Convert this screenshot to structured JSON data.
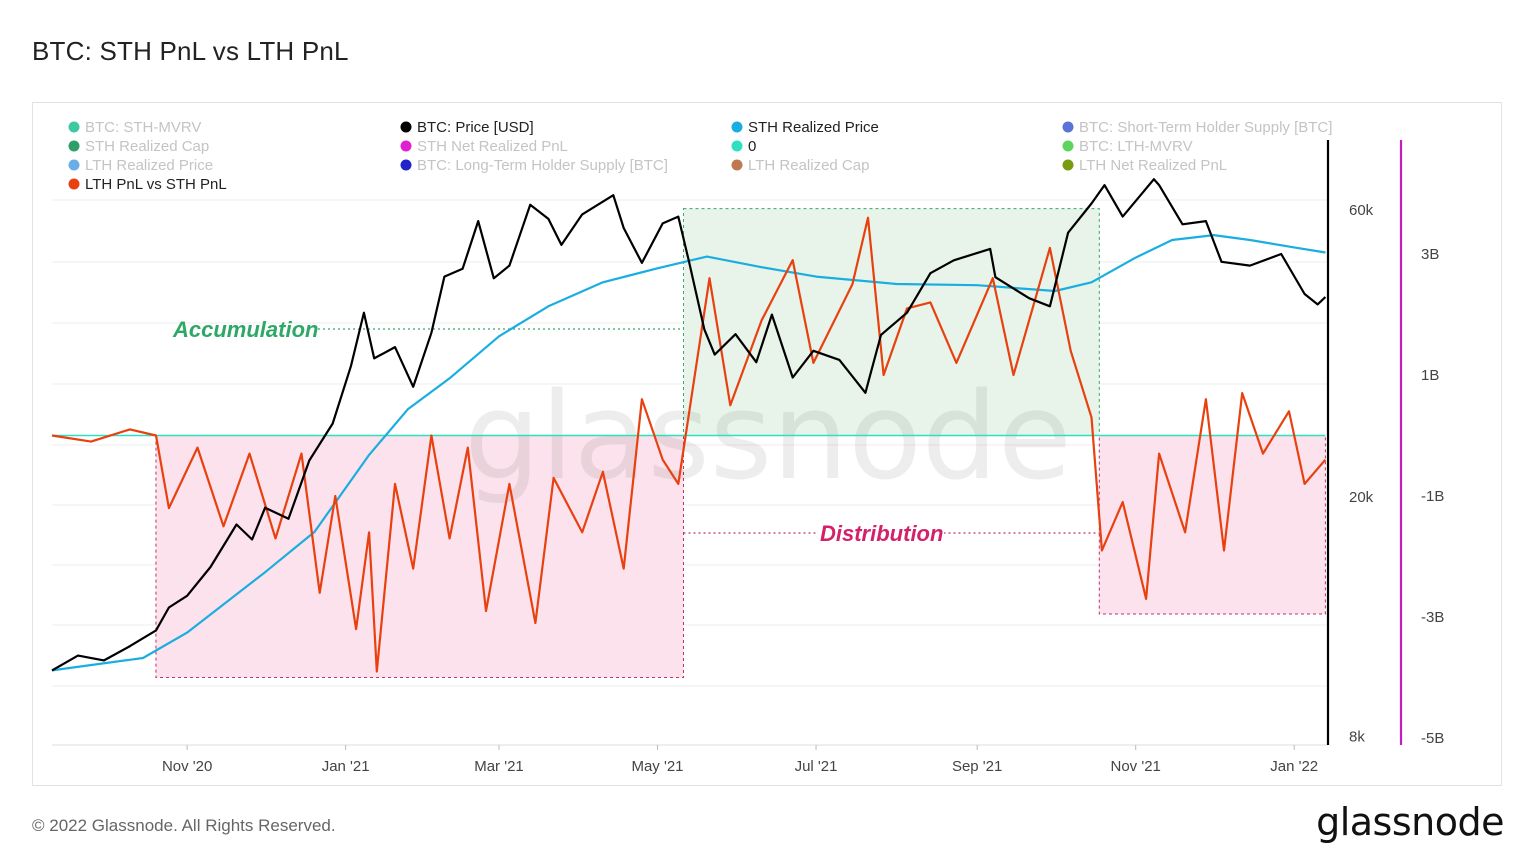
{
  "title": "BTC: STH PnL vs LTH PnL",
  "footer": "© 2022 Glassnode. All Rights Reserved.",
  "brand": "glassnode",
  "watermark": "glassnode",
  "legend": [
    {
      "label": "BTC: STH-MVRV",
      "color": "#3ec9a0",
      "active": false
    },
    {
      "label": "BTC: Price [USD]",
      "color": "#000000",
      "active": true
    },
    {
      "label": "STH Realized Price",
      "color": "#1aaee0",
      "active": true
    },
    {
      "label": "BTC: Short-Term Holder Supply [BTC]",
      "color": "#5b73d6",
      "active": false
    },
    {
      "label": "STH Realized Cap",
      "color": "#2e9e6b",
      "active": false
    },
    {
      "label": "STH Net Realized PnL",
      "color": "#e020d0",
      "active": false
    },
    {
      "label": "0",
      "color": "#2de0c0",
      "active": true
    },
    {
      "label": "BTC: LTH-MVRV",
      "color": "#5ed45e",
      "active": false
    },
    {
      "label": "LTH Realized Price",
      "color": "#6aaee8",
      "active": false
    },
    {
      "label": "BTC: Long-Term Holder Supply [BTC]",
      "color": "#2222cc",
      "active": false
    },
    {
      "label": "LTH Realized Cap",
      "color": "#c07850",
      "active": false
    },
    {
      "label": "LTH Net Realized PnL",
      "color": "#7a9a10",
      "active": false
    },
    {
      "label": "LTH PnL vs STH PnL",
      "color": "#e8410f",
      "active": true
    }
  ],
  "annotations": {
    "accumulation": "Accumulation",
    "distribution": "Distribution"
  },
  "colors": {
    "price": "#000000",
    "sth_realized_price": "#1aaee0",
    "pnl": "#e8410f",
    "zero": "#2de0c0",
    "accumulation_fill": "#e8f4ea",
    "accumulation_text": "#2ea867",
    "distribution_fill": "#fce2ec",
    "distribution_text": "#d3216b",
    "right_axis_line": "#c020c0"
  },
  "chart_data": {
    "type": "line",
    "title": "BTC: STH PnL vs LTH PnL",
    "x_ticks": [
      "Nov '20",
      "Jan '21",
      "Mar '21",
      "May '21",
      "Jul '21",
      "Sep '21",
      "Nov '21",
      "Jan '22"
    ],
    "x_tick_dates": [
      "2020-11-01",
      "2021-01-01",
      "2021-03-01",
      "2021-05-01",
      "2021-07-01",
      "2021-09-01",
      "2021-11-01",
      "2022-01-01"
    ],
    "x_range": [
      "2020-09-10",
      "2022-01-14"
    ],
    "y_left": {
      "scale": "log",
      "ticks": [
        "60k",
        "20k",
        "8k"
      ],
      "tick_values": [
        60000,
        20000,
        8000
      ],
      "range": [
        8000,
        80000
      ]
    },
    "y_right": {
      "scale": "linear",
      "ticks": [
        "3B",
        "1B",
        "-1B",
        "-3B",
        "-5B"
      ],
      "tick_values": [
        3000000000,
        1000000000,
        -1000000000,
        -3000000000,
        -5000000000
      ],
      "range": [
        -5000000000,
        4800000000
      ]
    },
    "grid": true,
    "legend_position": "top",
    "series": [
      {
        "name": "BTC: Price [USD]",
        "axis": "left",
        "points": [
          [
            "2020-09-10",
            10300
          ],
          [
            "2020-09-20",
            10900
          ],
          [
            "2020-09-30",
            10700
          ],
          [
            "2020-10-10",
            11300
          ],
          [
            "2020-10-20",
            12000
          ],
          [
            "2020-10-25",
            13100
          ],
          [
            "2020-11-01",
            13700
          ],
          [
            "2020-11-10",
            15300
          ],
          [
            "2020-11-20",
            18000
          ],
          [
            "2020-11-26",
            17000
          ],
          [
            "2020-12-01",
            19200
          ],
          [
            "2020-12-10",
            18400
          ],
          [
            "2020-12-18",
            23000
          ],
          [
            "2020-12-27",
            26500
          ],
          [
            "2021-01-03",
            33000
          ],
          [
            "2021-01-08",
            40500
          ],
          [
            "2021-01-12",
            34000
          ],
          [
            "2021-01-20",
            35500
          ],
          [
            "2021-01-27",
            30500
          ],
          [
            "2021-02-03",
            37500
          ],
          [
            "2021-02-08",
            46500
          ],
          [
            "2021-02-15",
            47900
          ],
          [
            "2021-02-21",
            57500
          ],
          [
            "2021-02-27",
            46200
          ],
          [
            "2021-03-05",
            48500
          ],
          [
            "2021-03-13",
            61200
          ],
          [
            "2021-03-20",
            58000
          ],
          [
            "2021-03-25",
            52500
          ],
          [
            "2021-04-02",
            59000
          ],
          [
            "2021-04-14",
            63500
          ],
          [
            "2021-04-18",
            56000
          ],
          [
            "2021-04-25",
            49000
          ],
          [
            "2021-05-03",
            57000
          ],
          [
            "2021-05-09",
            58500
          ],
          [
            "2021-05-13",
            49500
          ],
          [
            "2021-05-19",
            38000
          ],
          [
            "2021-05-23",
            34500
          ],
          [
            "2021-05-31",
            37300
          ],
          [
            "2021-06-08",
            33500
          ],
          [
            "2021-06-14",
            40200
          ],
          [
            "2021-06-22",
            31600
          ],
          [
            "2021-06-30",
            35000
          ],
          [
            "2021-07-10",
            33800
          ],
          [
            "2021-07-20",
            29800
          ],
          [
            "2021-07-26",
            37200
          ],
          [
            "2021-08-05",
            40500
          ],
          [
            "2021-08-14",
            47100
          ],
          [
            "2021-08-23",
            49500
          ],
          [
            "2021-09-06",
            51700
          ],
          [
            "2021-09-08",
            46400
          ],
          [
            "2021-09-21",
            42800
          ],
          [
            "2021-09-29",
            41500
          ],
          [
            "2021-10-06",
            55000
          ],
          [
            "2021-10-15",
            61500
          ],
          [
            "2021-10-20",
            66000
          ],
          [
            "2021-10-27",
            58500
          ],
          [
            "2021-11-08",
            67500
          ],
          [
            "2021-11-10",
            66000
          ],
          [
            "2021-11-19",
            56800
          ],
          [
            "2021-11-28",
            57500
          ],
          [
            "2021-12-04",
            49200
          ],
          [
            "2021-12-15",
            48500
          ],
          [
            "2021-12-27",
            50700
          ],
          [
            "2022-01-05",
            43500
          ],
          [
            "2022-01-10",
            41800
          ],
          [
            "2022-01-13",
            43000
          ]
        ]
      },
      {
        "name": "STH Realized Price",
        "axis": "left",
        "points": [
          [
            "2020-09-10",
            10300
          ],
          [
            "2020-10-15",
            10800
          ],
          [
            "2020-11-01",
            11900
          ],
          [
            "2020-12-01",
            15000
          ],
          [
            "2020-12-20",
            17500
          ],
          [
            "2021-01-10",
            23500
          ],
          [
            "2021-01-25",
            28000
          ],
          [
            "2021-02-10",
            31500
          ],
          [
            "2021-03-01",
            37000
          ],
          [
            "2021-03-20",
            41500
          ],
          [
            "2021-04-10",
            45500
          ],
          [
            "2021-05-01",
            48000
          ],
          [
            "2021-05-20",
            50200
          ],
          [
            "2021-06-10",
            48200
          ],
          [
            "2021-07-01",
            46500
          ],
          [
            "2021-08-01",
            45200
          ],
          [
            "2021-09-01",
            45000
          ],
          [
            "2021-10-01",
            44000
          ],
          [
            "2021-10-15",
            45500
          ],
          [
            "2021-11-01",
            50000
          ],
          [
            "2021-11-15",
            53500
          ],
          [
            "2021-12-01",
            54500
          ],
          [
            "2021-12-15",
            53500
          ],
          [
            "2022-01-01",
            52000
          ],
          [
            "2022-01-13",
            51000
          ]
        ]
      },
      {
        "name": "LTH PnL vs STH PnL",
        "axis": "right",
        "points": [
          [
            "2020-09-10",
            0.0
          ],
          [
            "2020-09-25",
            -100000000.0
          ],
          [
            "2020-10-10",
            100000000.0
          ],
          [
            "2020-10-20",
            0.0
          ],
          [
            "2020-10-25",
            -1200000000.0
          ],
          [
            "2020-11-05",
            -200000000.0
          ],
          [
            "2020-11-15",
            -1500000000.0
          ],
          [
            "2020-11-25",
            -300000000.0
          ],
          [
            "2020-12-05",
            -1700000000.0
          ],
          [
            "2020-12-15",
            -300000000.0
          ],
          [
            "2020-12-22",
            -2600000000.0
          ],
          [
            "2020-12-28",
            -1000000000.0
          ],
          [
            "2021-01-05",
            -3200000000.0
          ],
          [
            "2021-01-10",
            -1600000000.0
          ],
          [
            "2021-01-13",
            -3900000000.0
          ],
          [
            "2021-01-20",
            -800000000.0
          ],
          [
            "2021-01-27",
            -2200000000.0
          ],
          [
            "2021-02-03",
            0.0
          ],
          [
            "2021-02-10",
            -1700000000.0
          ],
          [
            "2021-02-17",
            -200000000.0
          ],
          [
            "2021-02-24",
            -2900000000.0
          ],
          [
            "2021-03-05",
            -800000000.0
          ],
          [
            "2021-03-15",
            -3100000000.0
          ],
          [
            "2021-03-22",
            -700000000.0
          ],
          [
            "2021-04-02",
            -1600000000.0
          ],
          [
            "2021-04-10",
            -600000000.0
          ],
          [
            "2021-04-18",
            -2200000000.0
          ],
          [
            "2021-04-25",
            600000000.0
          ],
          [
            "2021-05-03",
            -400000000.0
          ],
          [
            "2021-05-09",
            -800000000.0
          ],
          [
            "2021-05-15",
            900000000.0
          ],
          [
            "2021-05-21",
            2600000000.0
          ],
          [
            "2021-05-29",
            500000000.0
          ],
          [
            "2021-06-10",
            1900000000.0
          ],
          [
            "2021-06-22",
            2900000000.0
          ],
          [
            "2021-06-30",
            1200000000.0
          ],
          [
            "2021-07-15",
            2500000000.0
          ],
          [
            "2021-07-21",
            3600000000.0
          ],
          [
            "2021-07-27",
            1000000000.0
          ],
          [
            "2021-08-05",
            2100000000.0
          ],
          [
            "2021-08-14",
            2200000000.0
          ],
          [
            "2021-08-24",
            1200000000.0
          ],
          [
            "2021-09-07",
            2600000000.0
          ],
          [
            "2021-09-15",
            1000000000.0
          ],
          [
            "2021-09-29",
            3100000000.0
          ],
          [
            "2021-10-07",
            1400000000.0
          ],
          [
            "2021-10-15",
            300000000.0
          ],
          [
            "2021-10-19",
            -1900000000.0
          ],
          [
            "2021-10-27",
            -1100000000.0
          ],
          [
            "2021-11-05",
            -2700000000.0
          ],
          [
            "2021-11-10",
            -300000000.0
          ],
          [
            "2021-11-20",
            -1600000000.0
          ],
          [
            "2021-11-28",
            600000000.0
          ],
          [
            "2021-12-05",
            -1900000000.0
          ],
          [
            "2021-12-12",
            700000000.0
          ],
          [
            "2021-12-20",
            -300000000.0
          ],
          [
            "2021-12-30",
            400000000.0
          ],
          [
            "2022-01-05",
            -800000000.0
          ],
          [
            "2022-01-13",
            -400000000.0
          ]
        ]
      },
      {
        "name": "0",
        "axis": "right",
        "points": [
          [
            "2020-09-10",
            0
          ],
          [
            "2022-01-13",
            0
          ]
        ]
      }
    ],
    "zones": [
      {
        "label": "Distribution",
        "start": "2020-10-20",
        "end": "2021-05-11",
        "y_from": 0,
        "y_to": -4000000000.0
      },
      {
        "label": "Accumulation",
        "start": "2021-05-11",
        "end": "2021-10-18",
        "y_from": 0,
        "y_to": 3750000000.0
      },
      {
        "label": "",
        "start": "2021-10-18",
        "end": "2022-01-13",
        "y_from": 0,
        "y_to": -2950000000.0
      }
    ]
  }
}
